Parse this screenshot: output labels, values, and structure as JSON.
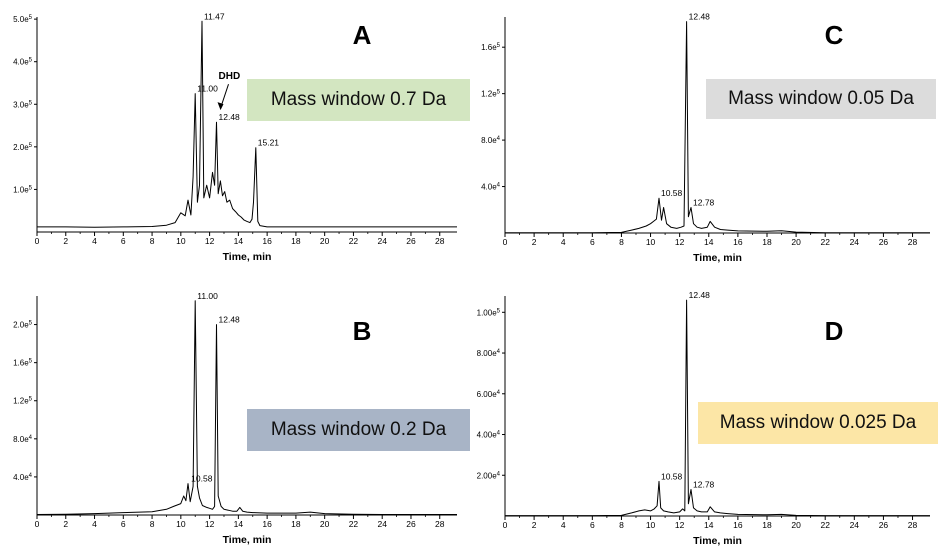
{
  "chart_data": [
    {
      "id": "A",
      "type": "line",
      "panel_label": "A",
      "xlabel": "Time, min",
      "xlim": [
        0,
        29.2
      ],
      "ylim": [
        0,
        505000
      ],
      "xticks": [
        0,
        2,
        4,
        6,
        8,
        10,
        12,
        14,
        16,
        18,
        20,
        22,
        24,
        26,
        28
      ],
      "yticks": [
        {
          "v": 100000,
          "label": "1.0e5"
        },
        {
          "v": 200000,
          "label": "2.0e5"
        },
        {
          "v": 300000,
          "label": "3.0e5"
        },
        {
          "v": 400000,
          "label": "4.0e5"
        },
        {
          "v": 500000,
          "label": "5.0e5"
        }
      ],
      "box": {
        "text": "Mass window 0.7 Da",
        "color": "#d3e6c1"
      },
      "peak_labels": [
        {
          "x": 11.47,
          "y": 495000,
          "label": "11.47"
        },
        {
          "x": 11.0,
          "y": 325000,
          "label": "11.00"
        },
        {
          "x": 12.48,
          "y": 258000,
          "label": "12.48"
        },
        {
          "x": 15.21,
          "y": 198000,
          "label": "15.21"
        }
      ],
      "annotation": {
        "text": "DHD",
        "x": 12.48,
        "y": 258000
      },
      "x": [
        0,
        2,
        4,
        6,
        8,
        9,
        9.6,
        10,
        10.3,
        10.5,
        10.7,
        10.85,
        11.0,
        11.15,
        11.3,
        11.47,
        11.6,
        11.8,
        12.0,
        12.2,
        12.35,
        12.48,
        12.6,
        12.75,
        12.9,
        13.05,
        13.2,
        13.4,
        13.6,
        13.8,
        14.0,
        14.2,
        14.4,
        14.6,
        14.8,
        14.95,
        15.05,
        15.21,
        15.35,
        15.5,
        16,
        17,
        18,
        20,
        22,
        24,
        26,
        28,
        29.2
      ],
      "y": [
        12000,
        12000,
        11000,
        12000,
        13000,
        16000,
        22000,
        45000,
        38000,
        75000,
        40000,
        130000,
        325000,
        70000,
        110000,
        495000,
        80000,
        110000,
        80000,
        140000,
        110000,
        258000,
        90000,
        120000,
        85000,
        95000,
        70000,
        75000,
        55000,
        48000,
        40000,
        35000,
        28000,
        25000,
        22000,
        30000,
        70000,
        198000,
        25000,
        15000,
        12000,
        12000,
        12000,
        12000,
        12000,
        12000,
        12000,
        12000,
        12000
      ]
    },
    {
      "id": "B",
      "type": "line",
      "panel_label": "B",
      "xlabel": "Time, min",
      "xlim": [
        0,
        29.2
      ],
      "ylim": [
        0,
        230000
      ],
      "xticks": [
        0,
        2,
        4,
        6,
        8,
        10,
        12,
        14,
        16,
        18,
        20,
        22,
        24,
        26,
        28
      ],
      "yticks": [
        {
          "v": 40000,
          "label": "4.0e4"
        },
        {
          "v": 80000,
          "label": "8.0e4"
        },
        {
          "v": 120000,
          "label": "1.2e5"
        },
        {
          "v": 160000,
          "label": "1.6e5"
        },
        {
          "v": 200000,
          "label": "2.0e5"
        }
      ],
      "box": {
        "text": "Mass window 0.2 Da",
        "color": "#a8b4c6"
      },
      "peak_labels": [
        {
          "x": 11.0,
          "y": 225000,
          "label": "11.00"
        },
        {
          "x": 12.48,
          "y": 200000,
          "label": "12.48"
        },
        {
          "x": 10.58,
          "y": 33000,
          "label": "10.58"
        }
      ],
      "x": [
        0,
        2,
        4,
        6,
        8,
        9,
        9.5,
        10,
        10.2,
        10.35,
        10.5,
        10.65,
        10.85,
        11.0,
        11.15,
        11.3,
        11.5,
        11.8,
        12.0,
        12.2,
        12.35,
        12.48,
        12.6,
        12.8,
        13.0,
        13.3,
        13.6,
        13.9,
        14.1,
        14.3,
        14.6,
        15,
        16,
        18,
        19,
        20,
        22,
        24,
        26,
        28,
        29.2
      ],
      "y": [
        500,
        800,
        1500,
        2500,
        3500,
        6000,
        9000,
        12000,
        20000,
        15000,
        33000,
        14000,
        30000,
        225000,
        30000,
        18000,
        10000,
        8000,
        7000,
        6000,
        9000,
        200000,
        20000,
        9000,
        6000,
        5000,
        4000,
        4000,
        8000,
        4000,
        3000,
        2500,
        2000,
        2000,
        3000,
        1500,
        800,
        500,
        500,
        500,
        500
      ]
    },
    {
      "id": "C",
      "type": "line",
      "panel_label": "C",
      "xlabel": "Time, min",
      "xlim": [
        0,
        29.2
      ],
      "ylim": [
        0,
        186000
      ],
      "xticks": [
        0,
        2,
        4,
        6,
        8,
        10,
        12,
        14,
        16,
        18,
        20,
        22,
        24,
        26,
        28
      ],
      "yticks": [
        {
          "v": 40000,
          "label": "4.0e4"
        },
        {
          "v": 80000,
          "label": "8.0e4"
        },
        {
          "v": 120000,
          "label": "1.2e5"
        },
        {
          "v": 160000,
          "label": "1.6e5"
        }
      ],
      "box": {
        "text": "Mass window 0.05 Da",
        "color": "#dcdcdc"
      },
      "peak_labels": [
        {
          "x": 12.48,
          "y": 182000,
          "label": "12.48"
        },
        {
          "x": 10.58,
          "y": 30000,
          "label": "10.58"
        },
        {
          "x": 12.78,
          "y": 22000,
          "label": "12.78"
        }
      ],
      "x": [
        0,
        2,
        4,
        6,
        8,
        8.7,
        9.2,
        9.7,
        10.0,
        10.2,
        10.4,
        10.58,
        10.75,
        10.9,
        11.1,
        11.4,
        11.8,
        12.1,
        12.3,
        12.48,
        12.6,
        12.78,
        12.95,
        13.2,
        13.5,
        13.9,
        14.1,
        14.4,
        14.8,
        15.3,
        16,
        18,
        19,
        20,
        22,
        24,
        26,
        28,
        29.2
      ],
      "y": [
        300,
        300,
        300,
        300,
        500,
        2500,
        4000,
        6000,
        8000,
        10000,
        12000,
        30000,
        11000,
        22000,
        8000,
        5000,
        4000,
        5000,
        6000,
        182000,
        14000,
        22000,
        8000,
        5000,
        4000,
        5000,
        10000,
        5000,
        3000,
        2500,
        1800,
        1500,
        2000,
        800,
        300,
        300,
        300,
        300,
        300
      ]
    },
    {
      "id": "D",
      "type": "line",
      "panel_label": "D",
      "xlabel": "Time, min",
      "xlim": [
        0,
        29.2
      ],
      "ylim": [
        0,
        108000
      ],
      "xticks": [
        0,
        2,
        4,
        6,
        8,
        10,
        12,
        14,
        16,
        18,
        20,
        22,
        24,
        26,
        28
      ],
      "yticks": [
        {
          "v": 20000,
          "label": "2.00e4"
        },
        {
          "v": 40000,
          "label": "4.00e4"
        },
        {
          "v": 60000,
          "label": "6.00e4"
        },
        {
          "v": 80000,
          "label": "8.00e4"
        },
        {
          "v": 100000,
          "label": "1.00e5"
        }
      ],
      "box": {
        "text": "Mass window 0.025 Da",
        "color": "#fce6a6"
      },
      "peak_labels": [
        {
          "x": 12.48,
          "y": 106000,
          "label": "12.48"
        },
        {
          "x": 10.58,
          "y": 17000,
          "label": "10.58"
        },
        {
          "x": 12.78,
          "y": 13000,
          "label": "12.78"
        }
      ],
      "x": [
        0,
        2,
        4,
        6,
        8,
        8.7,
        9.2,
        9.6,
        10.0,
        10.25,
        10.45,
        10.58,
        10.7,
        10.9,
        11.2,
        11.6,
        12.0,
        12.2,
        12.35,
        12.48,
        12.6,
        12.78,
        12.95,
        13.2,
        13.5,
        13.9,
        14.1,
        14.4,
        14.8,
        15.3,
        16,
        18,
        19,
        20,
        22,
        24,
        26,
        28,
        29.2
      ],
      "y": [
        200,
        200,
        200,
        200,
        300,
        1500,
        2500,
        3000,
        2500,
        3500,
        5000,
        17000,
        4000,
        2500,
        2000,
        1500,
        2000,
        3500,
        2500,
        106000,
        6000,
        13000,
        4000,
        2500,
        2000,
        2000,
        4500,
        2000,
        1500,
        1200,
        800,
        600,
        800,
        300,
        200,
        200,
        200,
        200,
        200
      ]
    }
  ]
}
